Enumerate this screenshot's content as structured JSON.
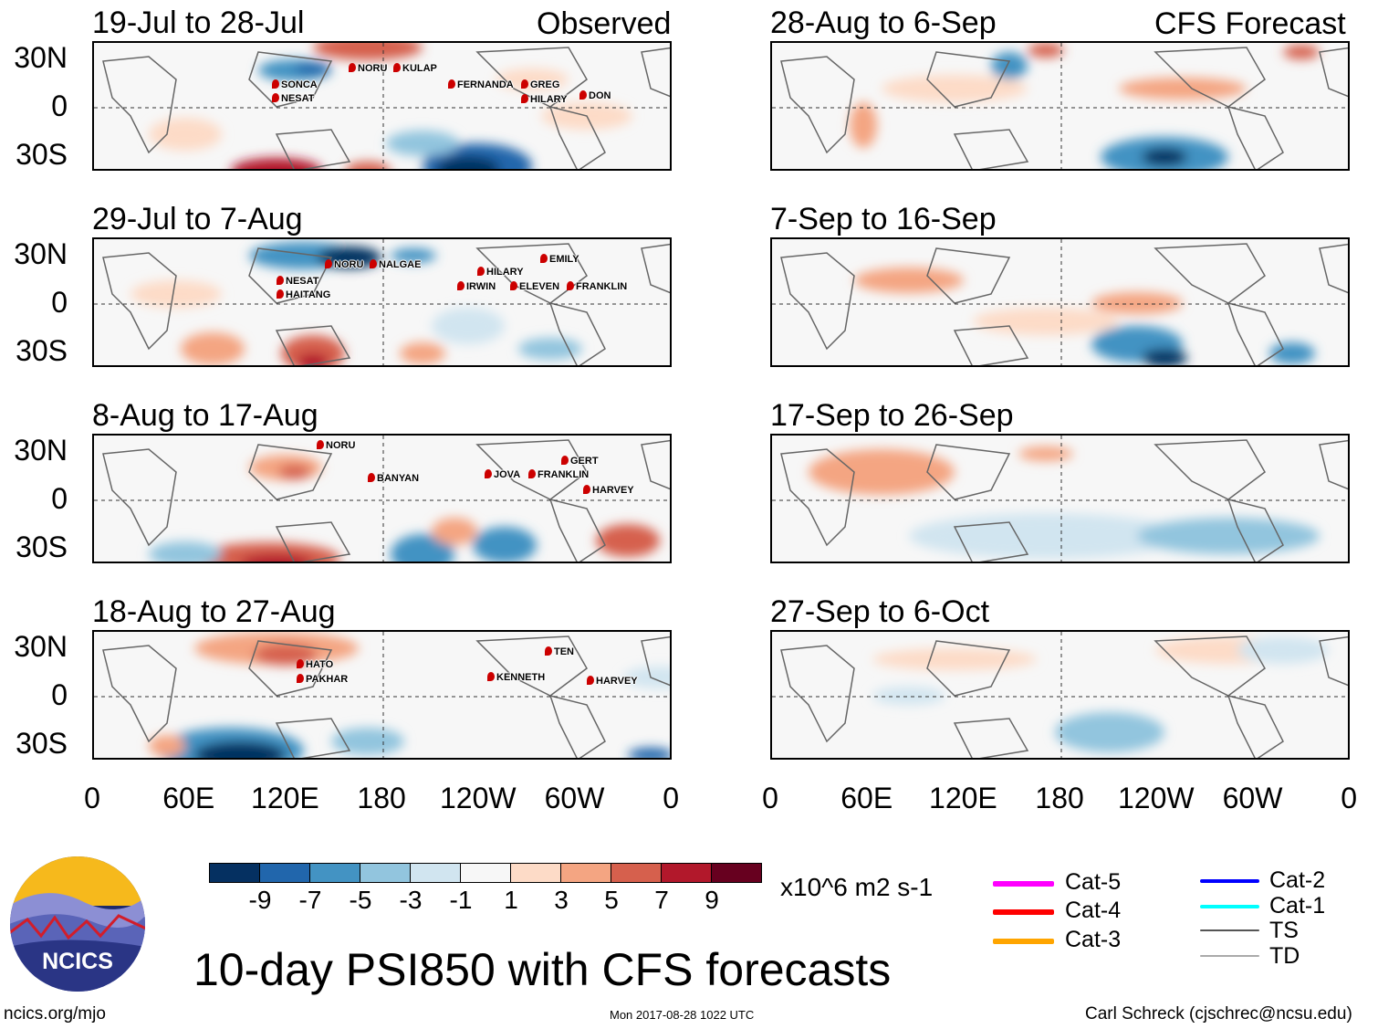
{
  "headers": {
    "observed": "Observed",
    "forecast": "CFS Forecast"
  },
  "observed_panels": [
    {
      "title": "19-Jul to 28-Jul",
      "storms": [
        "NORU",
        "KULAP",
        "SONCA",
        "NESAT",
        "FERNANDA",
        "GREG",
        "HILARY",
        "DON"
      ]
    },
    {
      "title": "29-Jul to 7-Aug",
      "storms": [
        "NORU",
        "NALGAE",
        "NESAT",
        "HAITANG",
        "HILARY",
        "IRWIN",
        "ELEVEN",
        "EMILY",
        "FRANKLIN"
      ]
    },
    {
      "title": "8-Aug to 17-Aug",
      "storms": [
        "NORU",
        "BANYAN",
        "JOVA",
        "FRANKLIN",
        "GERT",
        "HARVEY"
      ]
    },
    {
      "title": "18-Aug to 27-Aug",
      "storms": [
        "HATO",
        "PAKHAR",
        "KENNETH",
        "TEN",
        "HARVEY"
      ]
    }
  ],
  "forecast_panels": [
    {
      "title": "28-Aug to 6-Sep"
    },
    {
      "title": "7-Sep to 16-Sep"
    },
    {
      "title": "17-Sep to 26-Sep"
    },
    {
      "title": "27-Sep to 6-Oct"
    }
  ],
  "lat_labels": [
    "30N",
    "0",
    "30S"
  ],
  "lon_labels": [
    "0",
    "60E",
    "120E",
    "180",
    "120W",
    "60W",
    "0"
  ],
  "colorbar": {
    "colors": [
      "#053061",
      "#2166ac",
      "#4393c3",
      "#92c5de",
      "#d1e5f0",
      "#f7f7f7",
      "#fddbc7",
      "#f4a582",
      "#d6604d",
      "#b2182b",
      "#67001f"
    ],
    "labels": [
      "-9",
      "-7",
      "-5",
      "-3",
      "-1",
      "1",
      "3",
      "5",
      "7",
      "9"
    ],
    "units": "x10^6 m2 s-1"
  },
  "legend": [
    {
      "label": "Cat-5",
      "color": "#ff00ff"
    },
    {
      "label": "Cat-4",
      "color": "#ff0000"
    },
    {
      "label": "Cat-3",
      "color": "#ffa500"
    },
    {
      "label": "Cat-2",
      "color": "#0000ff"
    },
    {
      "label": "Cat-1",
      "color": "#00ffff"
    },
    {
      "label": "TS",
      "color": "#555555"
    },
    {
      "label": "TD",
      "color": "#aaaaaa"
    }
  ],
  "logo_text": "NCICS",
  "title": "10-day PSI850 with CFS forecasts",
  "footer": {
    "url": "ncics.org/mjo",
    "timestamp": "Mon 2017-08-28 1022 UTC",
    "author": "Carl Schreck (cjschrec@ncsu.edu)"
  }
}
